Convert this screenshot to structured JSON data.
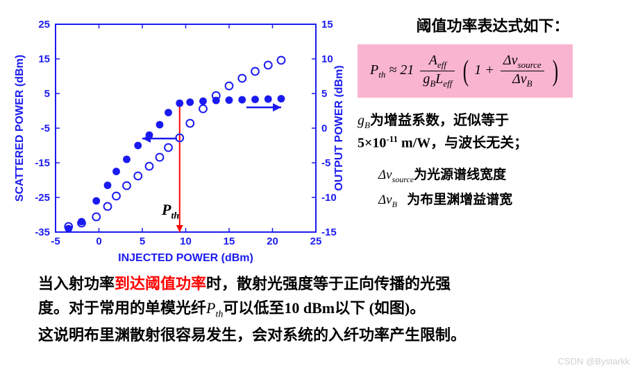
{
  "chart": {
    "xlabel": "INJECTED POWER (dBm)",
    "ylabel_left": "SCATTERED POWER (dBm)",
    "ylabel_right": "OUTPUT POWER (dBm)",
    "xlim": [
      -5,
      25
    ],
    "ylim_left": [
      -35,
      25
    ],
    "ylim_right": [
      -15,
      15
    ],
    "xticks": [
      -5,
      0,
      5,
      10,
      15,
      20,
      25
    ],
    "yticks_left": [
      -35,
      -25,
      -15,
      -5,
      5,
      15,
      25
    ],
    "yticks_right": [
      -15,
      -10,
      -5,
      0,
      5,
      10,
      15
    ],
    "axis_color": "#1a1af0",
    "text_color": "#1a1af0",
    "threshold_line_color": "#ff0000",
    "threshold_x": 9.3,
    "pth_label": "P",
    "pth_sub": "th",
    "font_family": "Arial, sans-serif",
    "label_fontsize": 16,
    "tick_fontsize": 15,
    "marker_size": 5.4,
    "series_filled": {
      "color": "#1a1af0",
      "points": [
        [
          -3.5,
          -34
        ],
        [
          -2,
          -32
        ],
        [
          -0.3,
          -26
        ],
        [
          1,
          -21.5
        ],
        [
          2,
          -17.5
        ],
        [
          3.2,
          -14
        ],
        [
          4.5,
          -10
        ],
        [
          5.8,
          -7
        ],
        [
          7,
          -4
        ],
        [
          8,
          -0.5
        ],
        [
          9.3,
          2.2
        ],
        [
          10.5,
          2.5
        ],
        [
          12,
          2.8
        ],
        [
          13.5,
          3
        ],
        [
          15,
          3.1
        ],
        [
          16.5,
          3.2
        ],
        [
          18,
          3.3
        ],
        [
          19.5,
          3.4
        ],
        [
          21,
          3.5
        ]
      ]
    },
    "series_open": {
      "color": "#1a1af0",
      "points_right_axis": [
        [
          -3.5,
          -14.2
        ],
        [
          -2,
          -13.7
        ],
        [
          -0.3,
          -12.8
        ],
        [
          1,
          -11.3
        ],
        [
          2,
          -9.8
        ],
        [
          3.2,
          -8.3
        ],
        [
          4.5,
          -6.9
        ],
        [
          5.8,
          -5.5
        ],
        [
          7,
          -4.2
        ],
        [
          8,
          -2.8
        ],
        [
          9.3,
          -1.4
        ],
        [
          10.5,
          0.7
        ],
        [
          12,
          2.8
        ],
        [
          13.5,
          4.7
        ],
        [
          15,
          6.1
        ],
        [
          16.5,
          7.2
        ],
        [
          18,
          8.2
        ],
        [
          19.5,
          9.1
        ],
        [
          21,
          9.8
        ]
      ]
    }
  },
  "right": {
    "title": "阈值功率表达式如下：",
    "formula": {
      "lhs": "P",
      "lhs_sub": "th",
      "approx": " ≈ 21 ",
      "frac1_num": "A",
      "frac1_num_sub": "eff",
      "frac1_den_a": "g",
      "frac1_den_a_sub": "B",
      "frac1_den_b": "L",
      "frac1_den_b_sub": "eff",
      "one_plus": "1 + ",
      "frac2_num": "Δv",
      "frac2_num_sub": "source",
      "frac2_den": "Δv",
      "frac2_den_sub": "B"
    },
    "desc1_a": "g",
    "desc1_a_sub": "B",
    "desc1_b": "为增益系数，近似等于",
    "desc1_c": "5×10",
    "desc1_c_sup": "-11",
    "desc1_d": " m/W，与波长无关；",
    "var1_sym": "Δv",
    "var1_sub": "source",
    "var1_txt": "为光源谱线宽度",
    "var2_sym": "Δv",
    "var2_sub": "B",
    "var2_txt": "为布里渊增益谱宽"
  },
  "bottom": {
    "line1_a": "当入射功率",
    "line1_red": "到达阈值功率",
    "line1_b": "时，散射光强度等于正向传播的光强",
    "line2_a": "度。对于常用的单模光纤",
    "line2_sym": "P",
    "line2_sub": "th",
    "line2_b": "可以低至10 dBm以下 (如图)。",
    "line3": "这说明布里渊散射很容易发生，会对系统的入纤功率产生限制。"
  },
  "watermark": "CSDN @Bystarkk"
}
